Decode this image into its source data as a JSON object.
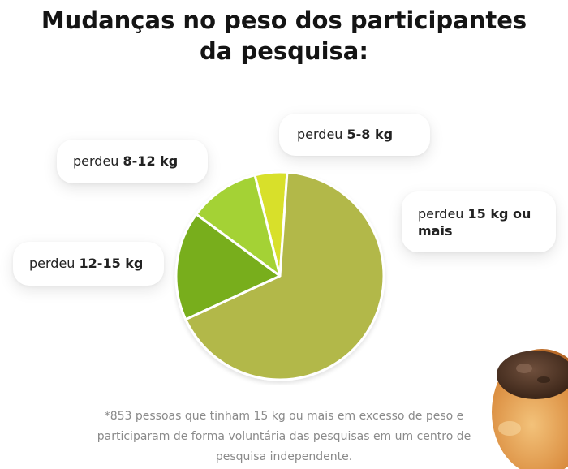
{
  "title": {
    "line1": "Mudanças no peso dos participantes",
    "line2": "da pesquisa:"
  },
  "chart_data": {
    "type": "pie",
    "title": "Mudanças no peso dos participantes da pesquisa:",
    "categories": [
      "perdeu 5-8 kg",
      "perdeu 15 kg ou mais",
      "perdeu 12-15 kg",
      "perdeu 8-12 kg"
    ],
    "values": [
      5,
      67,
      17,
      11
    ],
    "colors": [
      "#d8e02a",
      "#b2b84a",
      "#78ae1c",
      "#a4d234"
    ],
    "legend": "callouts"
  },
  "callouts": {
    "c_5_8": {
      "prefix": "perdeu",
      "value": "5-8 kg"
    },
    "c_8_12": {
      "prefix": "perdeu",
      "value": "8-12 kg"
    },
    "c_15": {
      "prefix": "perdeu",
      "value": "15 kg ou mais"
    },
    "c_12_15": {
      "prefix": "perdeu",
      "value": "12-15 kg"
    }
  },
  "footnote": {
    "line1": "*853 pessoas que tinham 15 kg ou mais em excesso de peso e",
    "line2": "participaram de forma voluntária das pesquisas em um centro de",
    "line3": "pesquisa independente."
  }
}
